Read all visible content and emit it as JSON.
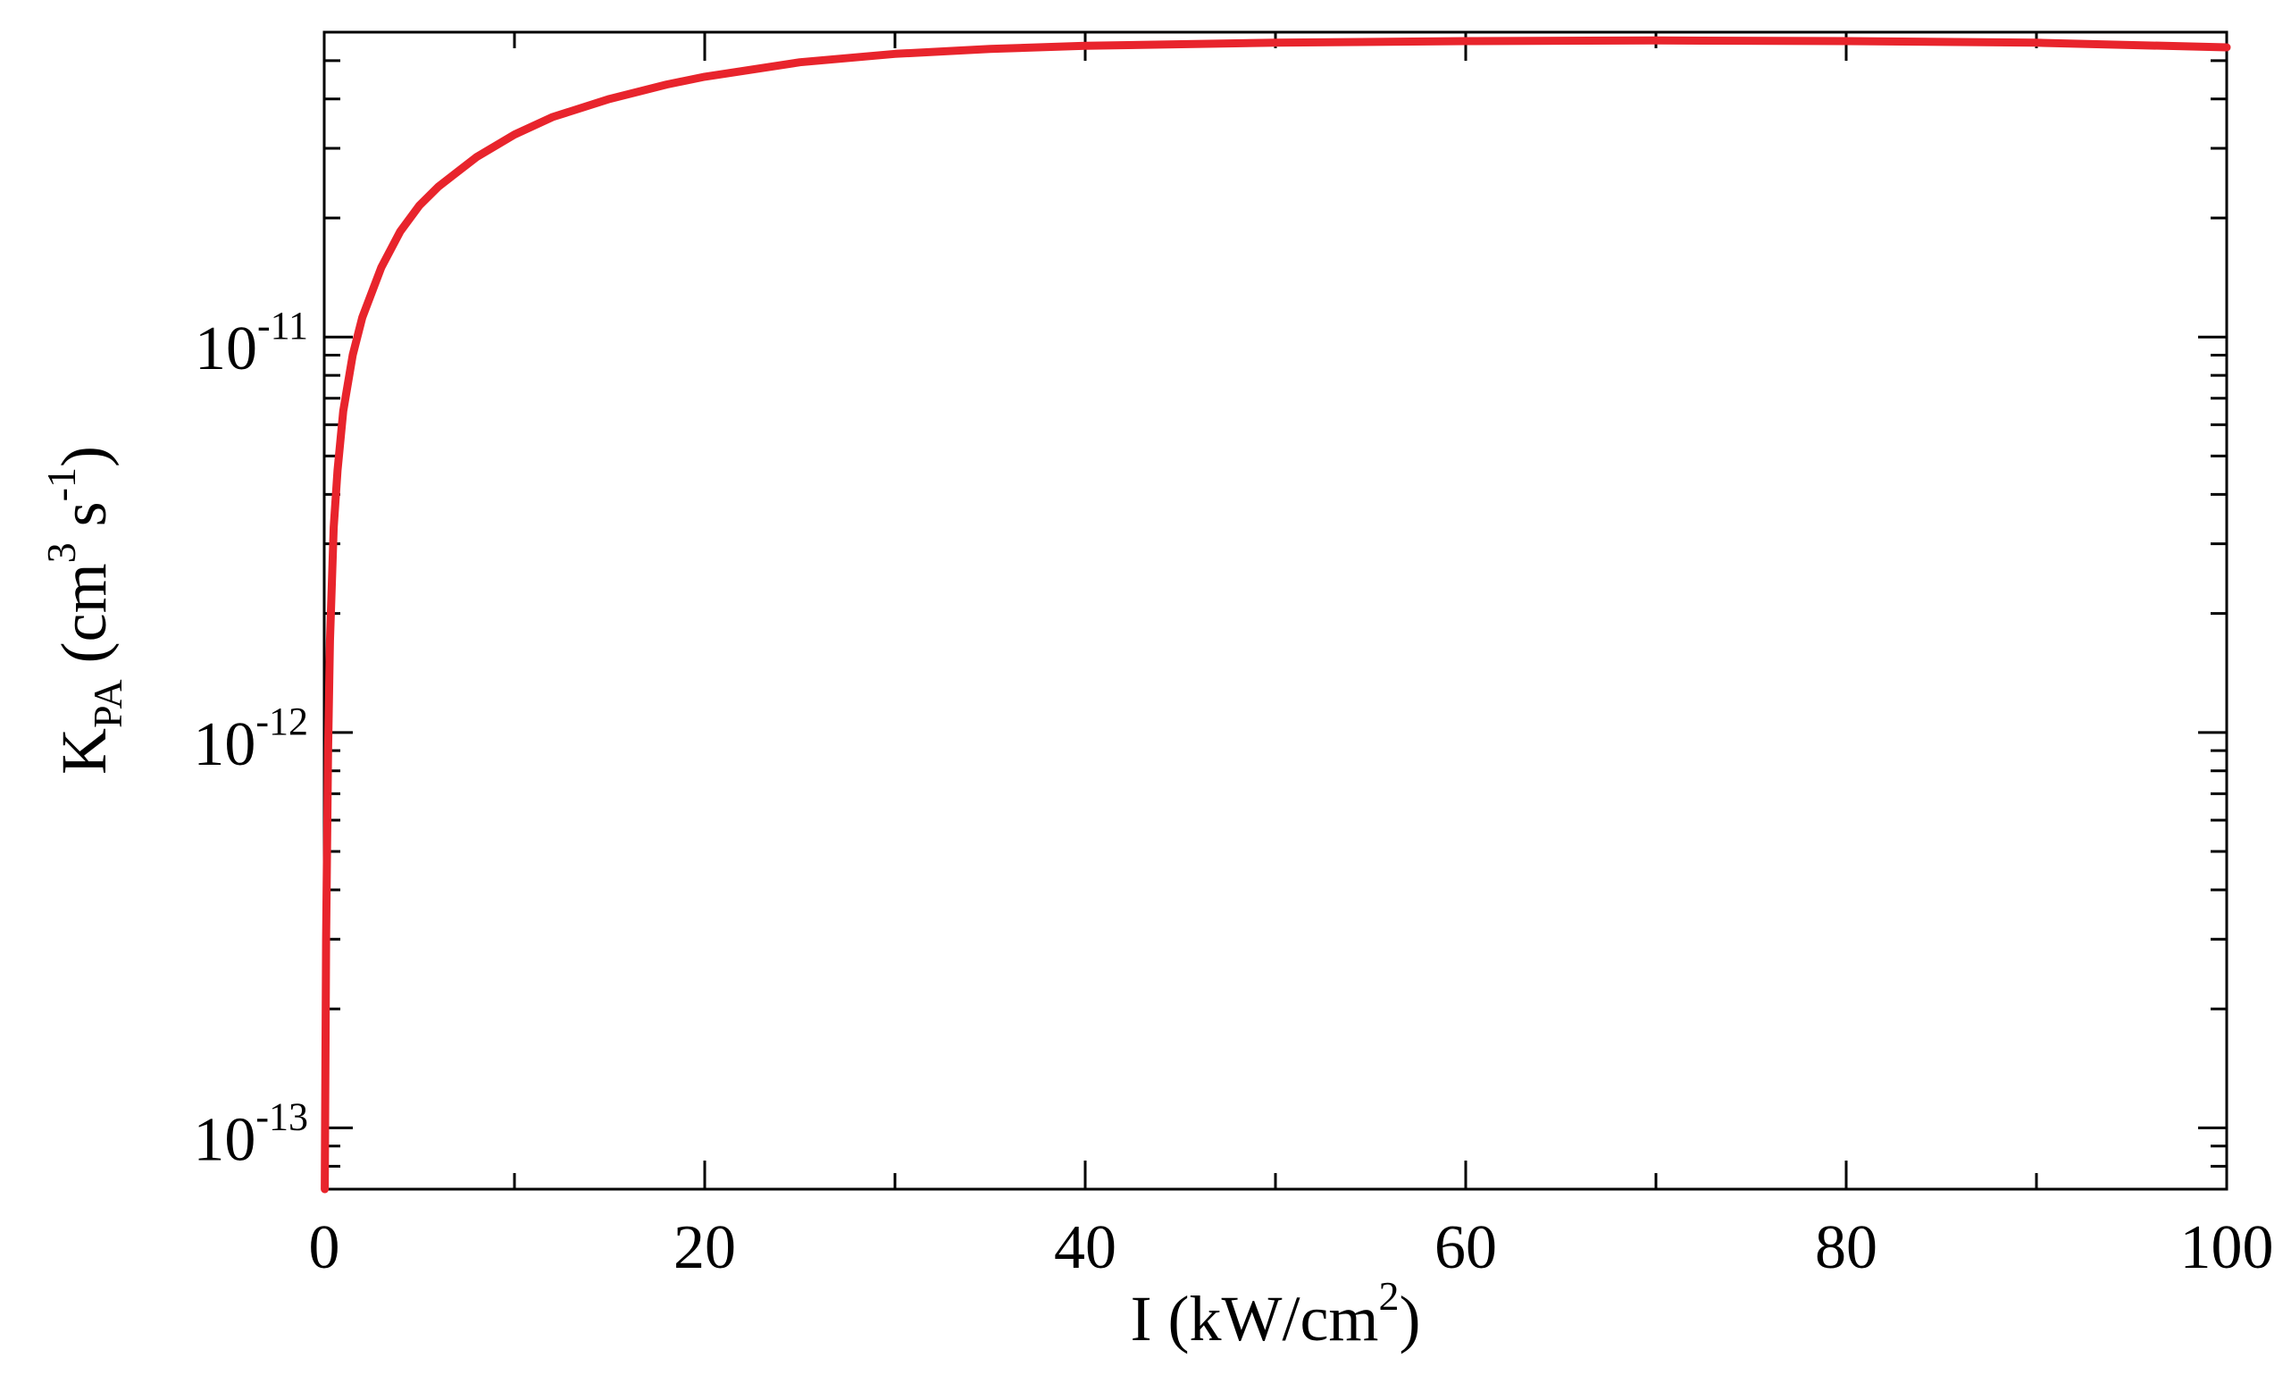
{
  "chart_data": {
    "type": "line",
    "title": "",
    "xlabel": {
      "main": "I (kW/cm",
      "sup": "2",
      "tail": ")"
    },
    "ylabel": {
      "main": "K",
      "sub": "PA",
      "unit_open": "  (cm",
      "unit_sup1": "3",
      "unit_mid": " s",
      "unit_sup2": "-1",
      "unit_close": ")"
    },
    "x_scale": "linear",
    "y_scale": "log",
    "xlim": [
      0,
      100
    ],
    "ylim": [
      7e-14,
      5.9e-11
    ],
    "x_ticks": [
      {
        "value": 0,
        "label": "0"
      },
      {
        "value": 20,
        "label": "20"
      },
      {
        "value": 40,
        "label": "40"
      },
      {
        "value": 60,
        "label": "60"
      },
      {
        "value": 80,
        "label": "80"
      },
      {
        "value": 100,
        "label": "100"
      }
    ],
    "y_ticks": [
      {
        "value": 1e-13,
        "base": "10",
        "exp": "-13"
      },
      {
        "value": 1e-12,
        "base": "10",
        "exp": "-12"
      },
      {
        "value": 1e-11,
        "base": "10",
        "exp": "-11"
      }
    ],
    "grid": false,
    "series": [
      {
        "color": "#e8242c",
        "x": [
          0.03,
          0.1,
          0.2,
          0.3,
          0.5,
          0.7,
          1,
          1.5,
          2,
          3,
          4,
          5,
          6,
          8,
          10,
          12,
          15,
          18,
          20,
          25,
          30,
          35,
          40,
          50,
          60,
          70,
          80,
          90,
          100
        ],
        "y": [
          7e-14,
          3e-13,
          9e-13,
          1.7e-12,
          3.3e-12,
          4.6e-12,
          6.5e-12,
          9e-12,
          1.12e-11,
          1.5e-11,
          1.85e-11,
          2.15e-11,
          2.4e-11,
          2.85e-11,
          3.25e-11,
          3.6e-11,
          4e-11,
          4.35e-11,
          4.55e-11,
          4.95e-11,
          5.2e-11,
          5.35e-11,
          5.45e-11,
          5.55e-11,
          5.6e-11,
          5.62e-11,
          5.6e-11,
          5.55e-11,
          5.4e-11
        ]
      }
    ]
  }
}
